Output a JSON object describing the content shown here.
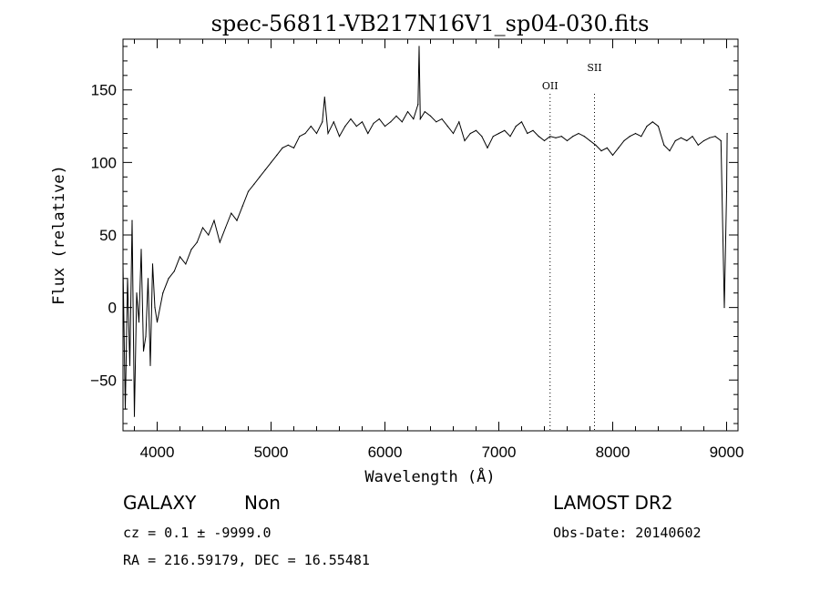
{
  "chart_data": {
    "type": "line",
    "title": "spec-56811-VB217N16V1_sp04-030.fits",
    "xlabel": "Wavelength (Å)",
    "ylabel": "Flux (relative)",
    "xlim": [
      3700,
      9100
    ],
    "ylim": [
      -85,
      185
    ],
    "xticks": [
      4000,
      5000,
      6000,
      7000,
      8000,
      9000
    ],
    "yticks": [
      -50,
      0,
      50,
      100,
      150
    ],
    "grid": false,
    "series": [
      {
        "x": [
          3700,
          3720,
          3740,
          3760,
          3780,
          3800,
          3820,
          3840,
          3860,
          3880,
          3900,
          3920,
          3940,
          3960,
          3980,
          4000,
          4050,
          4100,
          4150,
          4200,
          4250,
          4300,
          4350,
          4400,
          4450,
          4500,
          4550,
          4600,
          4650,
          4700,
          4750,
          4800,
          4850,
          4900,
          4950,
          5000,
          5050,
          5100,
          5150,
          5200,
          5250,
          5300,
          5350,
          5400,
          5450,
          5470,
          5500,
          5550,
          5600,
          5650,
          5700,
          5750,
          5800,
          5850,
          5900,
          5950,
          6000,
          6050,
          6100,
          6150,
          6200,
          6250,
          6290,
          6300,
          6310,
          6350,
          6400,
          6450,
          6500,
          6550,
          6600,
          6650,
          6700,
          6750,
          6800,
          6850,
          6900,
          6950,
          7000,
          7050,
          7100,
          7150,
          7200,
          7250,
          7300,
          7350,
          7400,
          7450,
          7500,
          7550,
          7600,
          7650,
          7700,
          7750,
          7800,
          7850,
          7900,
          7950,
          8000,
          8050,
          8100,
          8150,
          8200,
          8250,
          8300,
          8350,
          8400,
          8450,
          8500,
          8550,
          8600,
          8650,
          8700,
          8750,
          8800,
          8850,
          8900,
          8950,
          8980,
          9000,
          9005
        ],
        "y": [
          30,
          -70,
          20,
          -40,
          60,
          -75,
          10,
          -10,
          40,
          -30,
          -20,
          20,
          -40,
          30,
          0,
          -10,
          10,
          20,
          25,
          35,
          30,
          40,
          45,
          55,
          50,
          60,
          45,
          55,
          65,
          60,
          70,
          80,
          85,
          90,
          95,
          100,
          105,
          110,
          112,
          110,
          118,
          120,
          125,
          120,
          128,
          145,
          120,
          128,
          118,
          125,
          130,
          125,
          128,
          120,
          127,
          130,
          125,
          128,
          132,
          128,
          135,
          130,
          140,
          180,
          130,
          135,
          132,
          128,
          130,
          125,
          120,
          128,
          115,
          120,
          122,
          118,
          110,
          118,
          120,
          122,
          118,
          125,
          128,
          120,
          122,
          118,
          115,
          118,
          117,
          118,
          115,
          118,
          120,
          118,
          115,
          112,
          108,
          110,
          105,
          110,
          115,
          118,
          120,
          118,
          125,
          128,
          125,
          112,
          108,
          115,
          117,
          115,
          118,
          112,
          115,
          117,
          118,
          115,
          0,
          80,
          120
        ]
      }
    ],
    "annotations": [
      {
        "text": "OII",
        "x": 7450
      },
      {
        "text": "SII",
        "x": 7840
      }
    ]
  },
  "info": {
    "type": "GALAXY",
    "subclass": "Non",
    "survey": "LAMOST DR2",
    "cz": "cz = 0.1 ± -9999.0",
    "obs_date": "Obs-Date: 20140602",
    "radec": "RA = 216.59179, DEC =  16.55481"
  }
}
